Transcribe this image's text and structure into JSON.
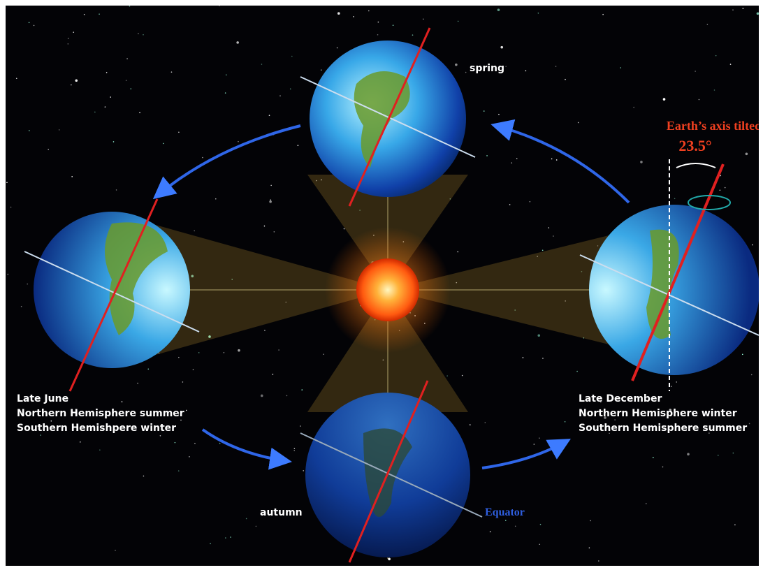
{
  "labels": {
    "spring": "spring",
    "autumn": "autumn",
    "equator": "Equator",
    "axis_title": "Earth’s axis tilted",
    "axis_angle": "23.5°"
  },
  "june": {
    "title": "Late June",
    "line1": "Northern Hemisphere summer",
    "line2": "Southern Hemishpere winter"
  },
  "december": {
    "title": "Late December",
    "line1": "Northern Hemisphere winter",
    "line2": "Southern Hemisphere summer"
  }
}
